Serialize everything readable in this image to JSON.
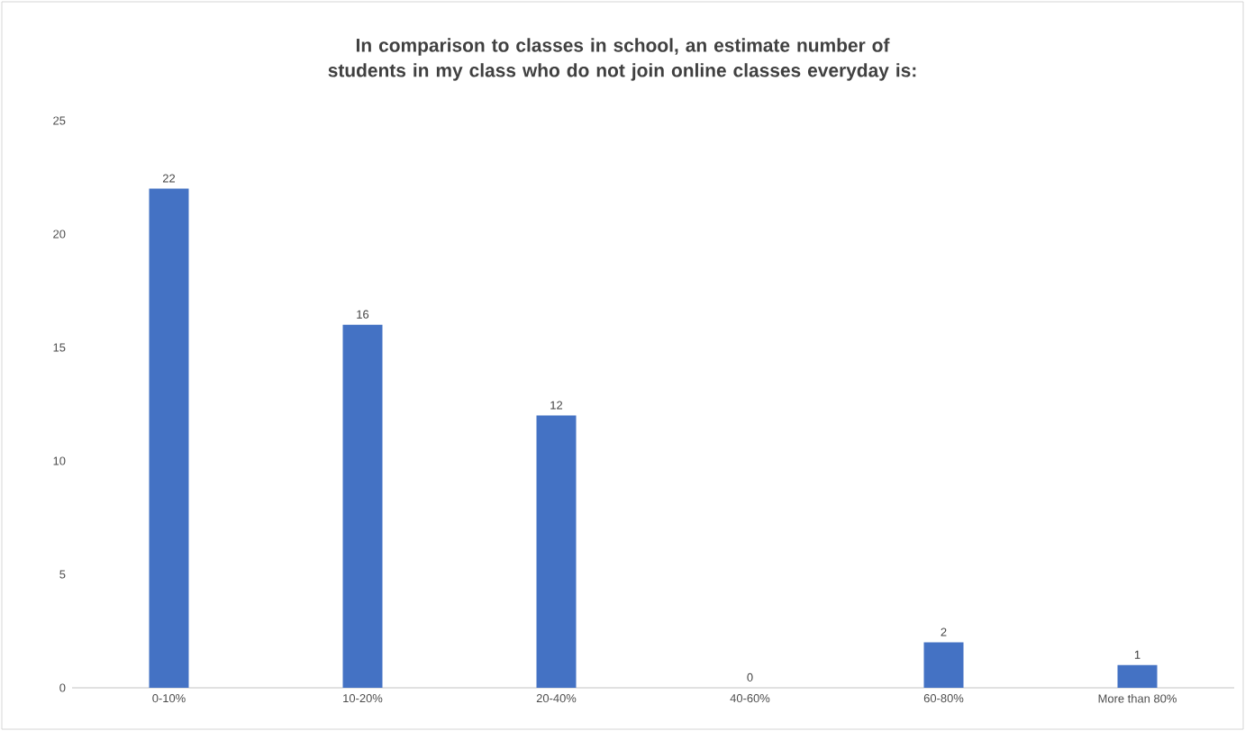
{
  "chart_data": {
    "type": "bar",
    "title": "In comparison to classes in school, an estimate number of students in my class who do not join online classes everyday is:",
    "categories": [
      "0-10%",
      "10-20%",
      "20-40%",
      "40-60%",
      "60-80%",
      "More than 80%"
    ],
    "values": [
      22,
      16,
      12,
      0,
      2,
      1
    ],
    "color": "#4472c4",
    "ylim": [
      0,
      25
    ],
    "yticks": [
      0,
      5,
      10,
      15,
      20,
      25
    ],
    "data_labels": true
  }
}
